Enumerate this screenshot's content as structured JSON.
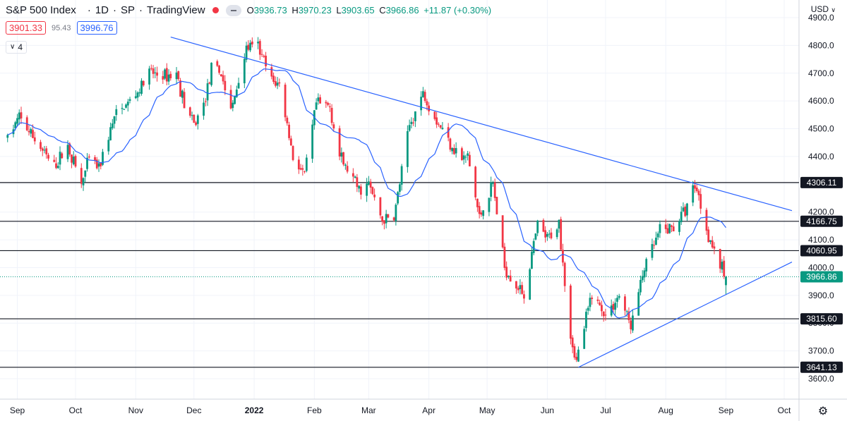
{
  "header": {
    "symbol": "S&P 500 Index",
    "interval": "1D",
    "exchange": "SP",
    "source": "TradingView",
    "open_label": "O",
    "open": "3936.73",
    "high_label": "H",
    "high": "3970.23",
    "low_label": "L",
    "low": "3903.65",
    "close_label": "C",
    "close": "3966.86",
    "change": "+11.87 (+0.30%)"
  },
  "indicators": {
    "bid": "3901.33",
    "spread": "95.43",
    "ask": "3996.76",
    "collapse_count": "4"
  },
  "price_axis": {
    "currency": "USD"
  },
  "colors": {
    "up": "#089981",
    "down": "#f23645",
    "ma": "#2962ff",
    "trendline": "#2962ff",
    "level": "#131722"
  },
  "chart_data": {
    "type": "candlestick",
    "ylim": [
      3560,
      4920
    ],
    "y_ticks": [
      3600,
      3700,
      3800,
      3900,
      4000,
      4100,
      4200,
      4300,
      4400,
      4500,
      4600,
      4700,
      4800,
      4900
    ],
    "x_tick_labels": [
      "Sep",
      "Oct",
      "Nov",
      "Dec",
      "2022",
      "Feb",
      "Mar",
      "Apr",
      "May",
      "Jun",
      "Jul",
      "Aug",
      "Sep",
      "Oct"
    ],
    "horizontal_levels": [
      4306.11,
      4166.75,
      4060.95,
      3815.6,
      3641.13
    ],
    "last_price": 3966.86,
    "last_price_label": "3966.86",
    "level_labels": [
      "4306.11",
      "4166.75",
      "4060.95",
      "3815.60",
      "3641.13"
    ],
    "trendlines": [
      {
        "name": "descending resistance",
        "from": {
          "date": "2021-11-19",
          "value": 4830
        },
        "to": {
          "date": "2022-10-05",
          "value": 4205
        }
      },
      {
        "name": "ascending support",
        "from": {
          "date": "2022-06-17",
          "value": 3641
        },
        "to": {
          "date": "2022-10-05",
          "value": 4020
        }
      }
    ],
    "anchors": [
      [
        "2021-08-27",
        4470
      ],
      [
        "2021-09-02",
        4540
      ],
      [
        "2021-09-10",
        4460
      ],
      [
        "2021-09-20",
        4360
      ],
      [
        "2021-09-27",
        4440
      ],
      [
        "2021-10-04",
        4300
      ],
      [
        "2021-10-08",
        4390
      ],
      [
        "2021-10-13",
        4360
      ],
      [
        "2021-10-21",
        4540
      ],
      [
        "2021-11-02",
        4630
      ],
      [
        "2021-11-08",
        4700
      ],
      [
        "2021-11-16",
        4690
      ],
      [
        "2021-11-22",
        4700
      ],
      [
        "2021-11-26",
        4590
      ],
      [
        "2021-12-01",
        4510
      ],
      [
        "2021-12-06",
        4590
      ],
      [
        "2021-12-10",
        4710
      ],
      [
        "2021-12-15",
        4700
      ],
      [
        "2021-12-20",
        4560
      ],
      [
        "2021-12-28",
        4790
      ],
      [
        "2022-01-03",
        4795
      ],
      [
        "2022-01-10",
        4670
      ],
      [
        "2022-01-14",
        4660
      ],
      [
        "2022-01-21",
        4400
      ],
      [
        "2022-01-27",
        4330
      ],
      [
        "2022-02-02",
        4590
      ],
      [
        "2022-02-09",
        4580
      ],
      [
        "2022-02-14",
        4400
      ],
      [
        "2022-02-24",
        4280
      ],
      [
        "2022-03-01",
        4300
      ],
      [
        "2022-03-08",
        4170
      ],
      [
        "2022-03-14",
        4180
      ],
      [
        "2022-03-22",
        4510
      ],
      [
        "2022-03-29",
        4630
      ],
      [
        "2022-04-05",
        4530
      ],
      [
        "2022-04-13",
        4440
      ],
      [
        "2022-04-18",
        4390
      ],
      [
        "2022-04-21",
        4400
      ],
      [
        "2022-04-27",
        4180
      ],
      [
        "2022-05-04",
        4300
      ],
      [
        "2022-05-10",
        4000
      ],
      [
        "2022-05-20",
        3900
      ],
      [
        "2022-05-27",
        4150
      ],
      [
        "2022-06-01",
        4100
      ],
      [
        "2022-06-07",
        4160
      ],
      [
        "2022-06-13",
        3750
      ],
      [
        "2022-06-16",
        3660
      ],
      [
        "2022-06-24",
        3910
      ],
      [
        "2022-07-01",
        3825
      ],
      [
        "2022-07-08",
        3900
      ],
      [
        "2022-07-14",
        3790
      ],
      [
        "2022-07-21",
        4000
      ],
      [
        "2022-07-29",
        4130
      ],
      [
        "2022-08-05",
        4145
      ],
      [
        "2022-08-11",
        4210
      ],
      [
        "2022-08-16",
        4305
      ],
      [
        "2022-08-19",
        4230
      ],
      [
        "2022-08-22",
        4140
      ],
      [
        "2022-08-26",
        4060
      ],
      [
        "2022-08-30",
        3990
      ],
      [
        "2022-09-01",
        3966.86
      ]
    ],
    "ma_period": 20
  }
}
